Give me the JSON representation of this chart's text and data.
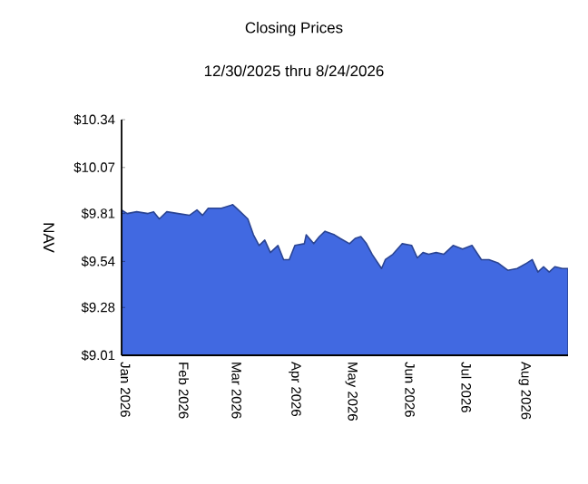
{
  "chart_data": {
    "type": "area",
    "title": "Closing Prices",
    "subtitle": "12/30/2025 thru 8/24/2026",
    "ylabel": "NAV",
    "color": "#4169e1",
    "grid": false,
    "x": [
      "2025-12-30",
      "2026-01-02",
      "2026-01-07",
      "2026-01-13",
      "2026-01-16",
      "2026-01-19",
      "2026-01-23",
      "2026-01-29",
      "2026-02-04",
      "2026-02-08",
      "2026-02-11",
      "2026-02-14",
      "2026-02-21",
      "2026-02-27",
      "2026-03-02",
      "2026-03-07",
      "2026-03-10",
      "2026-03-13",
      "2026-03-16",
      "2026-03-19",
      "2026-03-23",
      "2026-03-26",
      "2026-03-29",
      "2026-04-01",
      "2026-04-06",
      "2026-04-07",
      "2026-04-11",
      "2026-04-14",
      "2026-04-17",
      "2026-04-22",
      "2026-04-25",
      "2026-04-30",
      "2026-05-03",
      "2026-05-06",
      "2026-05-09",
      "2026-05-12",
      "2026-05-17",
      "2026-05-19",
      "2026-05-23",
      "2026-05-28",
      "2026-06-02",
      "2026-06-05",
      "2026-06-08",
      "2026-06-11",
      "2026-06-15",
      "2026-06-19",
      "2026-06-24",
      "2026-06-29",
      "2026-07-04",
      "2026-07-09",
      "2026-07-13",
      "2026-07-18",
      "2026-07-23",
      "2026-07-28",
      "2026-08-02",
      "2026-08-05",
      "2026-08-08",
      "2026-08-11",
      "2026-08-14",
      "2026-08-17",
      "2026-08-21",
      "2026-08-24"
    ],
    "values": [
      9.83,
      9.81,
      9.82,
      9.81,
      9.82,
      9.78,
      9.82,
      9.81,
      9.8,
      9.83,
      9.8,
      9.84,
      9.84,
      9.86,
      9.83,
      9.78,
      9.69,
      9.63,
      9.66,
      9.59,
      9.63,
      9.55,
      9.55,
      9.63,
      9.64,
      9.69,
      9.64,
      9.68,
      9.71,
      9.69,
      9.67,
      9.64,
      9.67,
      9.68,
      9.64,
      9.58,
      9.5,
      9.55,
      9.58,
      9.64,
      9.63,
      9.56,
      9.59,
      9.58,
      9.59,
      9.58,
      9.63,
      9.61,
      9.63,
      9.55,
      9.55,
      9.53,
      9.49,
      9.5,
      9.53,
      9.55,
      9.48,
      9.51,
      9.48,
      9.51,
      9.5,
      9.5
    ],
    "xlim": [
      "2025-12-30",
      "2026-08-24"
    ],
    "xticks": [
      {
        "value": "2026-01-01",
        "label": "Jan 2026"
      },
      {
        "value": "2026-02-01",
        "label": "Feb 2026"
      },
      {
        "value": "2026-03-01",
        "label": "Mar 2026"
      },
      {
        "value": "2026-04-01",
        "label": "Apr 2026"
      },
      {
        "value": "2026-05-01",
        "label": "May 2026"
      },
      {
        "value": "2026-06-01",
        "label": "Jun 2026"
      },
      {
        "value": "2026-07-01",
        "label": "Jul 2026"
      },
      {
        "value": "2026-08-01",
        "label": "Aug 2026"
      }
    ],
    "ylim": [
      9.01,
      10.34
    ],
    "yticks": [
      {
        "value": 9.01,
        "label": "$9.01"
      },
      {
        "value": 9.28,
        "label": "$9.28"
      },
      {
        "value": 9.54,
        "label": "$9.54"
      },
      {
        "value": 9.81,
        "label": "$9.81"
      },
      {
        "value": 10.07,
        "label": "$10.07"
      },
      {
        "value": 10.34,
        "label": "$10.34"
      }
    ]
  }
}
